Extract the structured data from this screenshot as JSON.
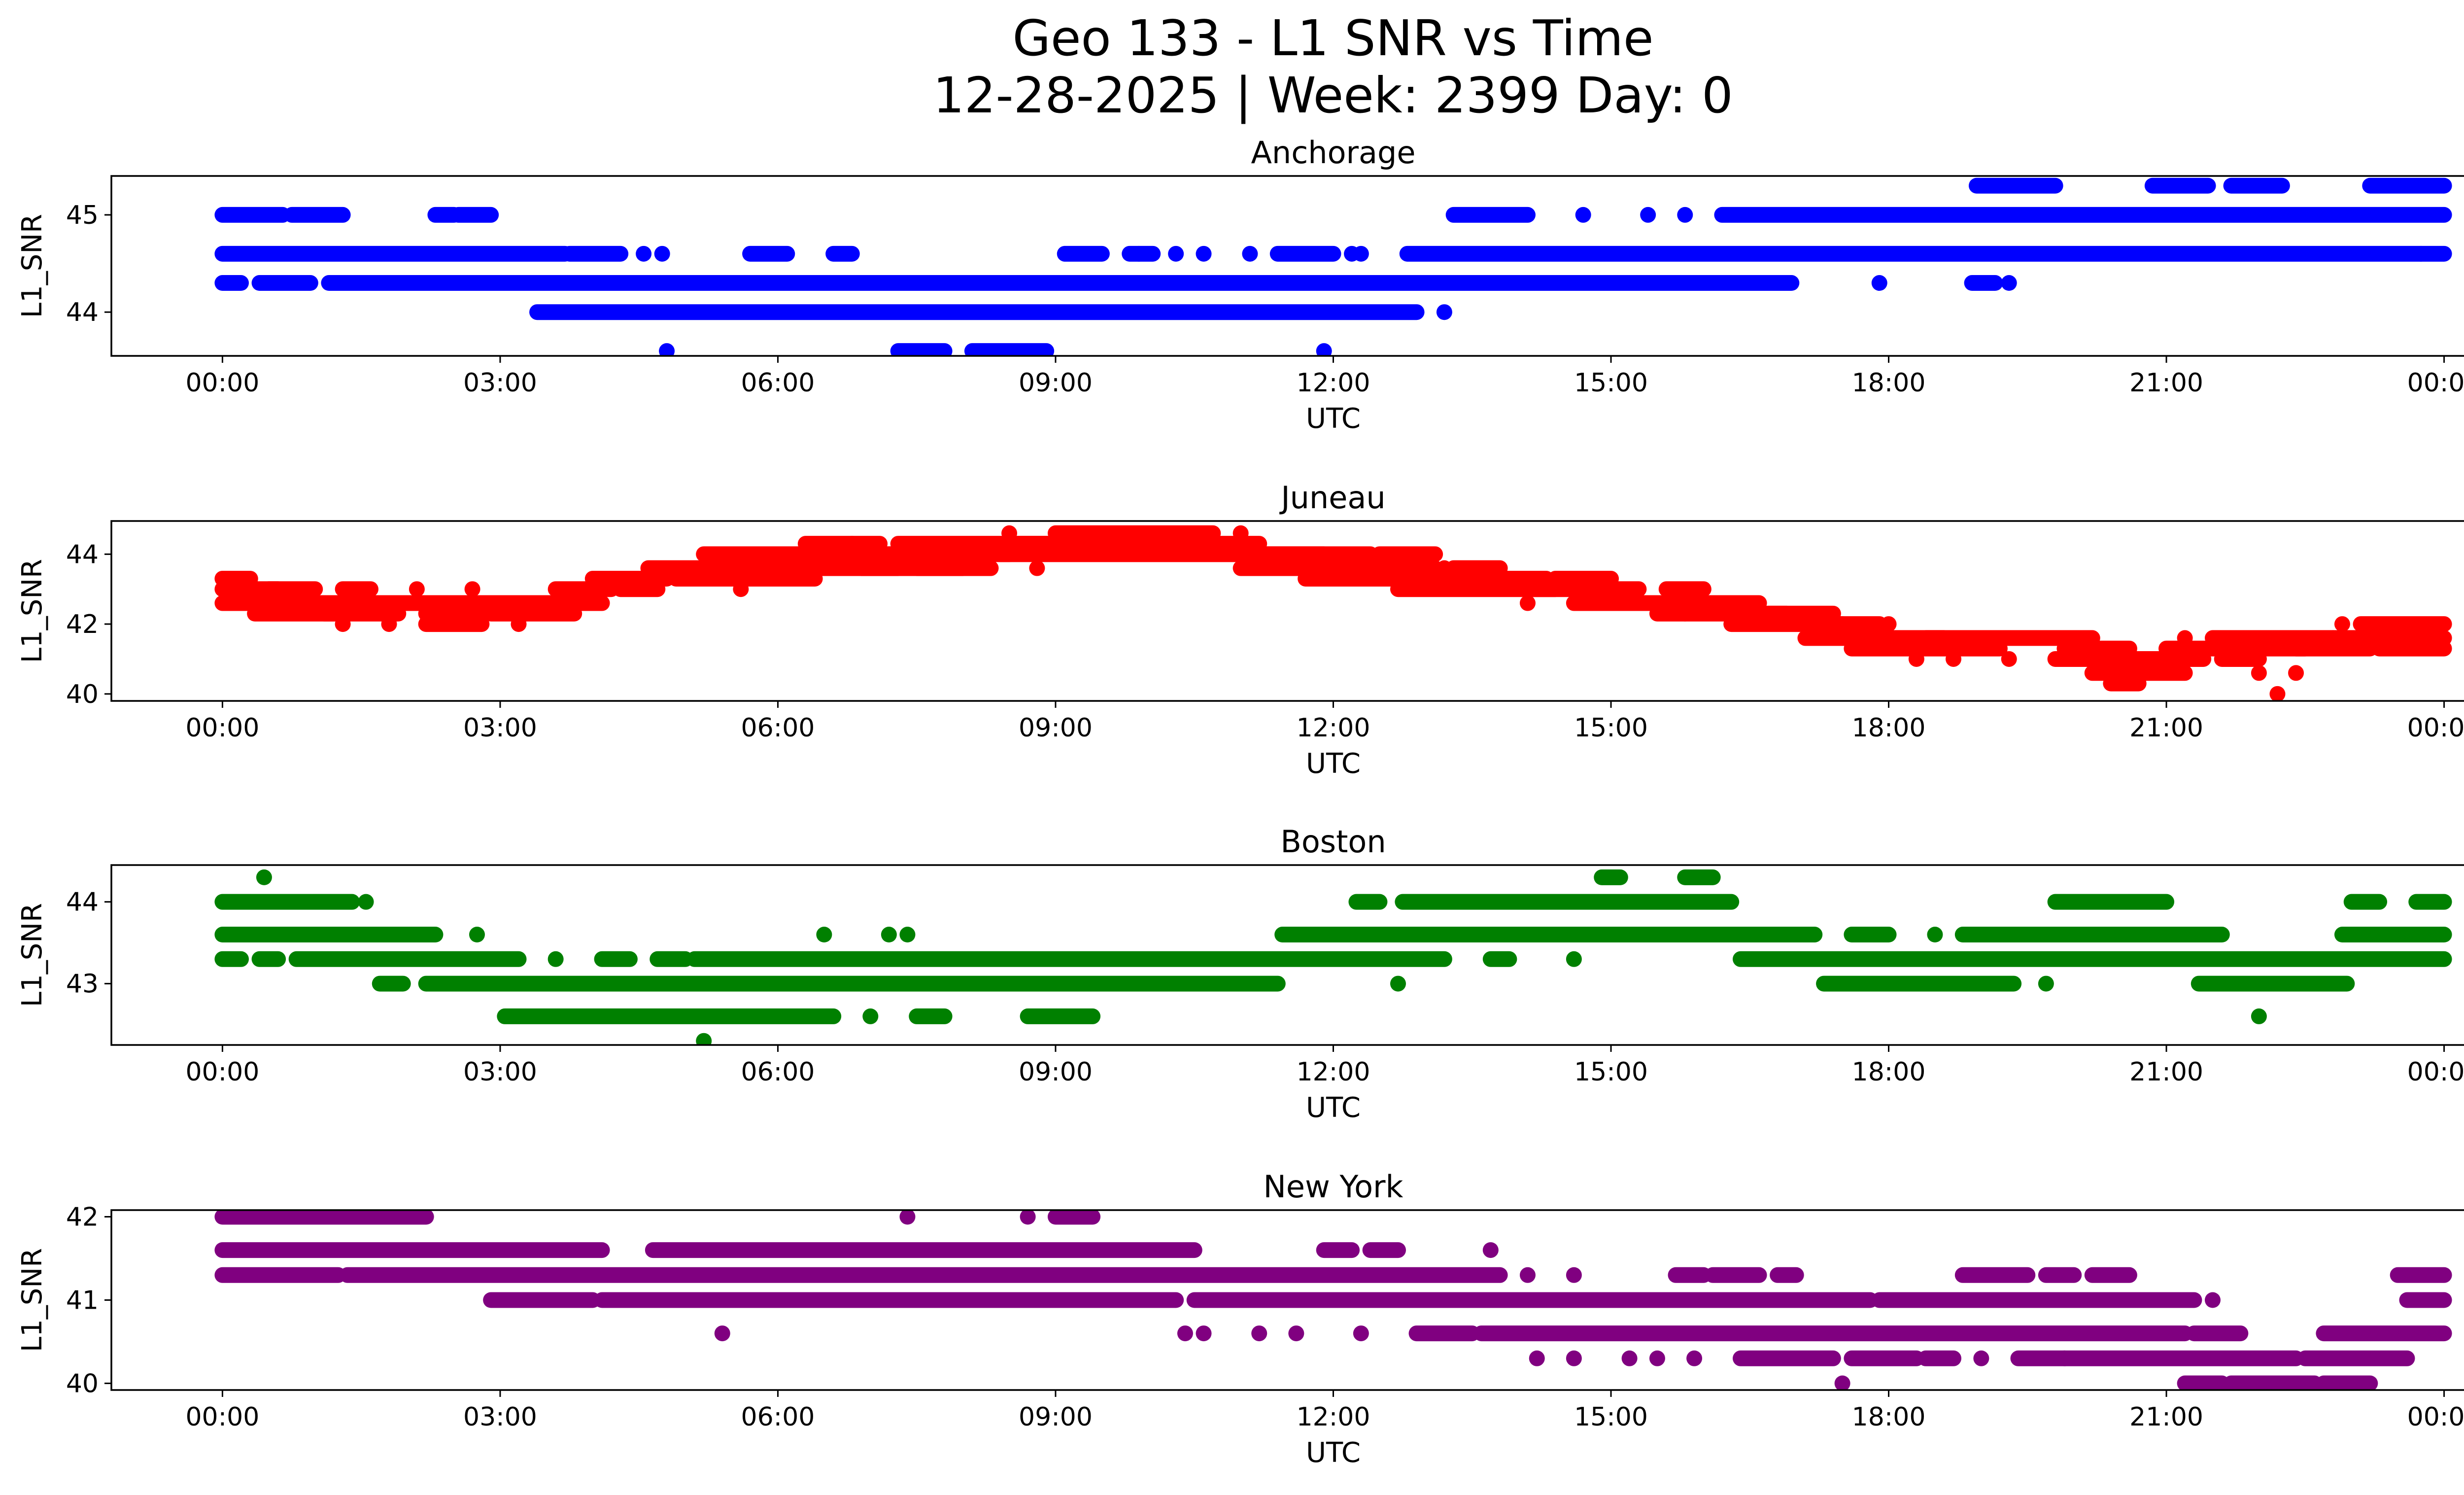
{
  "figure": {
    "title": "Geo 133 - L1 SNR vs Time",
    "subtitle": "12-28-2025 | Week: 2399 Day: 0"
  },
  "chart_data": [
    {
      "type": "scatter",
      "title": "Anchorage",
      "xlabel": "UTC",
      "ylabel": "L1_SNR",
      "color": "#0000ff",
      "xlim": [
        -1.2,
        25.2
      ],
      "ylim": [
        43.55,
        45.4
      ],
      "xticks": [
        "00:00",
        "03:00",
        "06:00",
        "09:00",
        "12:00",
        "15:00",
        "18:00",
        "21:00",
        "00:00"
      ],
      "yticks": [
        44,
        45
      ],
      "levels": [
        43.6,
        44.0,
        44.3,
        44.6,
        45.0,
        45.3
      ],
      "segments": [
        [
          45.3,
          18.95,
          19.8
        ],
        [
          45.3,
          20.85,
          21.45
        ],
        [
          45.3,
          21.7,
          22.25
        ],
        [
          45.3,
          23.2,
          24.0
        ],
        [
          45.0,
          0.0,
          0.65
        ],
        [
          45.0,
          0.75,
          1.3
        ],
        [
          45.0,
          2.3,
          2.5
        ],
        [
          45.0,
          2.55,
          2.9
        ],
        [
          45.0,
          13.3,
          14.1
        ],
        [
          45.0,
          16.2,
          24.0
        ],
        [
          44.6,
          0.0,
          3.7
        ],
        [
          44.6,
          3.75,
          4.3
        ],
        [
          44.6,
          5.7,
          6.1
        ],
        [
          44.6,
          6.6,
          6.8
        ],
        [
          44.6,
          9.1,
          9.5
        ],
        [
          44.6,
          9.8,
          10.05
        ],
        [
          44.6,
          11.4,
          12.0
        ],
        [
          44.6,
          12.8,
          24.0
        ],
        [
          44.3,
          0.0,
          0.2
        ],
        [
          44.3,
          0.4,
          0.95
        ],
        [
          44.3,
          1.15,
          16.95
        ],
        [
          44.3,
          18.9,
          19.15
        ],
        [
          44.0,
          3.4,
          12.9
        ],
        [
          43.6,
          7.3,
          7.8
        ],
        [
          43.6,
          8.1,
          8.9
        ]
      ],
      "points": [
        [
          44.6,
          4.55
        ],
        [
          44.6,
          4.75
        ],
        [
          44.6,
          9.9
        ],
        [
          44.6,
          10.3
        ],
        [
          44.6,
          10.6
        ],
        [
          44.6,
          11.1
        ],
        [
          44.6,
          12.2
        ],
        [
          44.6,
          12.3
        ],
        [
          44.6,
          23.75
        ],
        [
          45.0,
          14.7
        ],
        [
          45.0,
          15.4
        ],
        [
          45.0,
          15.8
        ],
        [
          44.3,
          17.9
        ],
        [
          44.3,
          19.3
        ],
        [
          44.0,
          13.2
        ],
        [
          43.6,
          4.8
        ],
        [
          43.6,
          11.9
        ]
      ]
    },
    {
      "type": "scatter",
      "title": "Juneau",
      "xlabel": "UTC",
      "ylabel": "L1_SNR",
      "color": "#ff0000",
      "xlim": [
        -1.2,
        25.2
      ],
      "ylim": [
        39.8,
        44.95
      ],
      "xticks": [
        "00:00",
        "03:00",
        "06:00",
        "09:00",
        "12:00",
        "15:00",
        "18:00",
        "21:00",
        "00:00"
      ],
      "yticks": [
        40,
        42,
        44
      ],
      "segments": [
        [
          43.3,
          0.0,
          0.3
        ],
        [
          43.0,
          0.0,
          0.6
        ],
        [
          42.6,
          0.0,
          1.0
        ],
        [
          42.3,
          0.35,
          1.2
        ],
        [
          43.0,
          0.5,
          1.0
        ],
        [
          42.6,
          0.9,
          2.3
        ],
        [
          42.3,
          1.1,
          1.9
        ],
        [
          43.0,
          1.3,
          1.6
        ],
        [
          42.6,
          2.1,
          3.5
        ],
        [
          42.3,
          2.2,
          2.8
        ],
        [
          42.0,
          2.2,
          2.8
        ],
        [
          42.3,
          2.9,
          3.8
        ],
        [
          42.6,
          3.3,
          4.1
        ],
        [
          43.0,
          3.6,
          4.2
        ],
        [
          43.3,
          4.0,
          4.8
        ],
        [
          43.0,
          4.3,
          4.7
        ],
        [
          43.6,
          4.6,
          5.8
        ],
        [
          43.3,
          4.9,
          5.7
        ],
        [
          44.0,
          5.2,
          6.7
        ],
        [
          43.6,
          5.5,
          7.3
        ],
        [
          43.3,
          5.6,
          6.4
        ],
        [
          44.0,
          6.5,
          7.4
        ],
        [
          44.3,
          6.3,
          7.1
        ],
        [
          43.6,
          6.9,
          8.0
        ],
        [
          44.0,
          7.1,
          8.5
        ],
        [
          44.3,
          7.3,
          8.9
        ],
        [
          43.6,
          7.5,
          8.3
        ],
        [
          44.0,
          8.4,
          11.9
        ],
        [
          44.3,
          8.6,
          11.2
        ],
        [
          44.6,
          9.0,
          10.7
        ],
        [
          43.6,
          11.0,
          12.6
        ],
        [
          44.0,
          11.2,
          12.4
        ],
        [
          43.3,
          11.7,
          12.9
        ],
        [
          43.6,
          12.3,
          13.1
        ],
        [
          44.0,
          12.5,
          13.1
        ],
        [
          43.0,
          12.7,
          14.4
        ],
        [
          43.3,
          13.0,
          14.3
        ],
        [
          43.6,
          13.3,
          13.8
        ],
        [
          43.0,
          14.1,
          15.3
        ],
        [
          42.6,
          14.6,
          15.7
        ],
        [
          43.3,
          14.4,
          15.0
        ],
        [
          42.3,
          15.5,
          16.9
        ],
        [
          42.6,
          15.6,
          16.6
        ],
        [
          43.0,
          15.6,
          16.0
        ],
        [
          42.0,
          16.3,
          17.5
        ],
        [
          42.3,
          16.7,
          17.4
        ],
        [
          41.6,
          17.1,
          18.6
        ],
        [
          42.0,
          17.3,
          17.9
        ],
        [
          41.3,
          17.6,
          19.2
        ],
        [
          41.6,
          18.4,
          20.2
        ],
        [
          41.0,
          19.8,
          20.7
        ],
        [
          41.3,
          19.9,
          20.6
        ],
        [
          40.6,
          20.2,
          21.2
        ],
        [
          40.3,
          20.4,
          20.7
        ],
        [
          41.0,
          20.7,
          21.4
        ],
        [
          41.3,
          21.0,
          22.5
        ],
        [
          41.6,
          21.5,
          22.8
        ],
        [
          41.0,
          21.6,
          22.0
        ],
        [
          41.3,
          22.4,
          23.2
        ],
        [
          41.6,
          22.8,
          24.0
        ],
        [
          42.0,
          23.1,
          24.0
        ],
        [
          41.3,
          23.3,
          24.0
        ]
      ],
      "points": [
        [
          42.0,
          1.3
        ],
        [
          42.0,
          1.8
        ],
        [
          43.0,
          2.1
        ],
        [
          43.0,
          2.7
        ],
        [
          42.0,
          3.2
        ],
        [
          43.0,
          5.6
        ],
        [
          44.3,
          6.8
        ],
        [
          43.6,
          8.8
        ],
        [
          44.6,
          8.5
        ],
        [
          44.6,
          11.0
        ],
        [
          43.6,
          13.2
        ],
        [
          42.6,
          14.1
        ],
        [
          43.3,
          14.6
        ],
        [
          42.3,
          15.8
        ],
        [
          41.6,
          17.6
        ],
        [
          41.0,
          18.3
        ],
        [
          41.0,
          18.7
        ],
        [
          41.0,
          19.3
        ],
        [
          42.0,
          18.0
        ],
        [
          41.6,
          21.2
        ],
        [
          40.6,
          22.0
        ],
        [
          40.6,
          22.4
        ],
        [
          40.0,
          22.2
        ],
        [
          42.0,
          22.9
        ]
      ]
    },
    {
      "type": "scatter",
      "title": "Boston",
      "xlabel": "UTC",
      "ylabel": "L1_SNR",
      "color": "#008000",
      "xlim": [
        -1.2,
        25.2
      ],
      "ylim": [
        42.25,
        44.45
      ],
      "xticks": [
        "00:00",
        "03:00",
        "06:00",
        "09:00",
        "12:00",
        "15:00",
        "18:00",
        "21:00",
        "00:00"
      ],
      "yticks": [
        43,
        44
      ],
      "segments": [
        [
          44.0,
          0.0,
          1.4
        ],
        [
          44.0,
          12.25,
          12.5
        ],
        [
          44.0,
          12.75,
          16.3
        ],
        [
          44.0,
          19.8,
          21.0
        ],
        [
          44.0,
          23.0,
          23.3
        ],
        [
          44.0,
          23.7,
          24.0
        ],
        [
          44.3,
          15.8,
          16.1
        ],
        [
          44.3,
          14.9,
          15.1
        ],
        [
          43.6,
          0.0,
          2.3
        ],
        [
          43.6,
          11.45,
          17.2
        ],
        [
          43.6,
          17.6,
          18.0
        ],
        [
          43.6,
          18.8,
          21.6
        ],
        [
          43.6,
          22.9,
          24.0
        ],
        [
          43.3,
          0.0,
          0.2
        ],
        [
          43.3,
          0.4,
          0.6
        ],
        [
          43.3,
          0.8,
          3.2
        ],
        [
          43.3,
          4.1,
          4.4
        ],
        [
          43.3,
          4.7,
          5.0
        ],
        [
          43.3,
          5.1,
          13.2
        ],
        [
          43.3,
          13.7,
          13.9
        ],
        [
          43.3,
          16.4,
          24.0
        ],
        [
          43.0,
          1.7,
          1.95
        ],
        [
          43.0,
          2.2,
          11.4
        ],
        [
          43.0,
          17.3,
          19.35
        ],
        [
          43.0,
          21.35,
          22.95
        ],
        [
          42.6,
          3.05,
          6.6
        ],
        [
          42.6,
          7.5,
          7.8
        ],
        [
          42.6,
          8.7,
          9.4
        ]
      ],
      "points": [
        [
          44.3,
          0.45
        ],
        [
          44.0,
          1.55
        ],
        [
          43.6,
          2.75
        ],
        [
          43.3,
          3.6
        ],
        [
          43.3,
          14.6
        ],
        [
          43.6,
          6.5
        ],
        [
          43.6,
          7.2
        ],
        [
          43.6,
          7.4
        ],
        [
          43.6,
          18.5
        ],
        [
          43.0,
          12.7
        ],
        [
          43.0,
          19.7
        ],
        [
          42.6,
          7.0
        ],
        [
          42.6,
          22.0
        ],
        [
          42.3,
          5.2
        ]
      ]
    },
    {
      "type": "scatter",
      "title": "New York",
      "xlabel": "UTC",
      "ylabel": "L1_SNR",
      "color": "#800080",
      "xlim": [
        -1.2,
        25.2
      ],
      "ylim": [
        39.92,
        42.08
      ],
      "xticks": [
        "00:00",
        "03:00",
        "06:00",
        "09:00",
        "12:00",
        "15:00",
        "18:00",
        "21:00",
        "00:00"
      ],
      "yticks": [
        40,
        41,
        42
      ],
      "segments": [
        [
          42.0,
          0.0,
          2.2
        ],
        [
          42.0,
          9.0,
          9.4
        ],
        [
          41.6,
          0.0,
          4.1
        ],
        [
          41.6,
          4.65,
          10.5
        ],
        [
          41.6,
          11.9,
          12.2
        ],
        [
          41.6,
          12.4,
          12.7
        ],
        [
          41.3,
          0.0,
          1.25
        ],
        [
          41.3,
          1.35,
          13.8
        ],
        [
          41.3,
          15.7,
          16.0
        ],
        [
          41.3,
          16.1,
          16.6
        ],
        [
          41.3,
          16.8,
          17.0
        ],
        [
          41.3,
          18.8,
          19.5
        ],
        [
          41.3,
          19.7,
          20.0
        ],
        [
          41.3,
          20.2,
          20.6
        ],
        [
          41.3,
          23.5,
          24.0
        ],
        [
          41.0,
          2.9,
          4.0
        ],
        [
          41.0,
          4.1,
          10.3
        ],
        [
          41.0,
          10.5,
          17.8
        ],
        [
          41.0,
          17.9,
          21.3
        ],
        [
          41.0,
          21.5,
          21.5
        ],
        [
          41.0,
          23.6,
          24.0
        ],
        [
          40.6,
          12.9,
          13.5
        ],
        [
          40.6,
          13.6,
          21.2
        ],
        [
          40.6,
          21.3,
          21.8
        ],
        [
          40.6,
          22.7,
          24.0
        ],
        [
          40.3,
          16.4,
          17.4
        ],
        [
          40.3,
          17.6,
          18.3
        ],
        [
          40.3,
          18.4,
          18.7
        ],
        [
          40.3,
          19.4,
          22.4
        ],
        [
          40.3,
          22.5,
          23.6
        ],
        [
          40.0,
          21.2,
          21.6
        ],
        [
          40.0,
          21.7,
          22.6
        ],
        [
          40.0,
          22.7,
          23.2
        ]
      ],
      "points": [
        [
          42.0,
          7.4
        ],
        [
          42.0,
          8.7
        ],
        [
          41.6,
          13.7
        ],
        [
          41.3,
          14.1
        ],
        [
          41.3,
          14.6
        ],
        [
          40.6,
          5.4
        ],
        [
          40.6,
          10.4
        ],
        [
          40.6,
          10.6
        ],
        [
          40.6,
          11.2
        ],
        [
          40.6,
          11.6
        ],
        [
          40.6,
          12.3
        ],
        [
          40.3,
          14.2
        ],
        [
          40.3,
          14.6
        ],
        [
          40.3,
          15.2
        ],
        [
          40.3,
          15.5
        ],
        [
          40.3,
          15.9
        ],
        [
          40.3,
          19.0
        ],
        [
          40.3,
          19.9
        ],
        [
          40.0,
          17.5
        ],
        [
          41.0,
          8.1
        ],
        [
          41.0,
          8.5
        ]
      ]
    }
  ]
}
